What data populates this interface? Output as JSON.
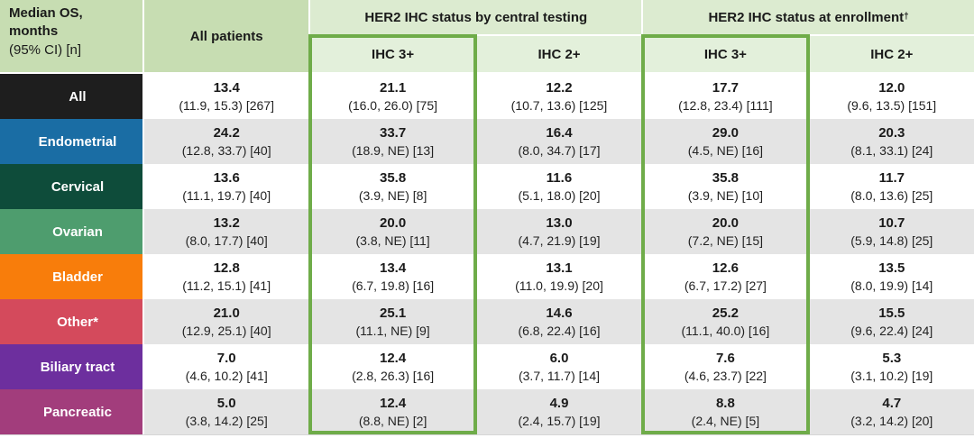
{
  "colors": {
    "header_left_green": "#C7DDB2",
    "banner_green": "#DCEBD0",
    "subheader_green": "#E3F0DB",
    "highlight_border_green": "#6FAC49",
    "alt_row_gray": "#E4E4E4",
    "text_dark": "#1A1A1A"
  },
  "chart_data": {
    "type": "table",
    "title": "Median OS, months (95% CI) [n]",
    "corner_header_lines": [
      "Median OS,",
      "months",
      "(95% CI) [n]"
    ],
    "group_headers": [
      {
        "text": "HER2 IHC status by central testing",
        "sup": ""
      },
      {
        "text": "HER2 IHC status at enrollment",
        "sup": "†"
      }
    ],
    "columns": [
      "All patients",
      "IHC 3+",
      "IHC 2+",
      "IHC 3+",
      "IHC 2+"
    ],
    "highlighted_columns": [
      "IHC 3+ by central testing",
      "IHC 3+ at enrollment"
    ],
    "rows": [
      {
        "label": "All",
        "color": "#1E1E1E",
        "cells": [
          {
            "m": "13.4",
            "ci": "(11.9, 15.3) [267]"
          },
          {
            "m": "21.1",
            "ci": "(16.0, 26.0) [75]"
          },
          {
            "m": "12.2",
            "ci": "(10.7, 13.6) [125]"
          },
          {
            "m": "17.7",
            "ci": "(12.8, 23.4) [111]"
          },
          {
            "m": "12.0",
            "ci": "(9.6, 13.5) [151]"
          }
        ]
      },
      {
        "label": "Endometrial",
        "color": "#1A6DA4",
        "cells": [
          {
            "m": "24.2",
            "ci": "(12.8, 33.7) [40]"
          },
          {
            "m": "33.7",
            "ci": "(18.9, NE) [13]"
          },
          {
            "m": "16.4",
            "ci": "(8.0, 34.7) [17]"
          },
          {
            "m": "29.0",
            "ci": "(4.5, NE) [16]"
          },
          {
            "m": "20.3",
            "ci": "(8.1, 33.1) [24]"
          }
        ]
      },
      {
        "label": "Cervical",
        "color": "#0E4C3A",
        "cells": [
          {
            "m": "13.6",
            "ci": "(11.1, 19.7) [40]"
          },
          {
            "m": "35.8",
            "ci": "(3.9, NE) [8]"
          },
          {
            "m": "11.6",
            "ci": "(5.1, 18.0) [20]"
          },
          {
            "m": "35.8",
            "ci": "(3.9, NE) [10]"
          },
          {
            "m": "11.7",
            "ci": "(8.0, 13.6) [25]"
          }
        ]
      },
      {
        "label": "Ovarian",
        "color": "#4E9D6E",
        "cells": [
          {
            "m": "13.2",
            "ci": "(8.0, 17.7) [40]"
          },
          {
            "m": "20.0",
            "ci": "(3.8, NE) [11]"
          },
          {
            "m": "13.0",
            "ci": "(4.7, 21.9) [19]"
          },
          {
            "m": "20.0",
            "ci": "(7.2, NE) [15]"
          },
          {
            "m": "10.7",
            "ci": "(5.9, 14.8) [25]"
          }
        ]
      },
      {
        "label": "Bladder",
        "color": "#F87D0B",
        "cells": [
          {
            "m": "12.8",
            "ci": "(11.2, 15.1) [41]"
          },
          {
            "m": "13.4",
            "ci": "(6.7, 19.8) [16]"
          },
          {
            "m": "13.1",
            "ci": "(11.0, 19.9) [20]"
          },
          {
            "m": "12.6",
            "ci": "(6.7, 17.2) [27]"
          },
          {
            "m": "13.5",
            "ci": "(8.0, 19.9) [14]"
          }
        ]
      },
      {
        "label": "Other*",
        "color": "#D44A5C",
        "cells": [
          {
            "m": "21.0",
            "ci": "(12.9, 25.1) [40]"
          },
          {
            "m": "25.1",
            "ci": "(11.1, NE) [9]"
          },
          {
            "m": "14.6",
            "ci": "(6.8, 22.4) [16]"
          },
          {
            "m": "25.2",
            "ci": "(11.1, 40.0) [16]"
          },
          {
            "m": "15.5",
            "ci": "(9.6, 22.4) [24]"
          }
        ]
      },
      {
        "label": "Biliary tract",
        "color": "#6D2F9E",
        "cells": [
          {
            "m": "7.0",
            "ci": "(4.6, 10.2) [41]"
          },
          {
            "m": "12.4",
            "ci": "(2.8, 26.3) [16]"
          },
          {
            "m": "6.0",
            "ci": "(3.7, 11.7) [14]"
          },
          {
            "m": "7.6",
            "ci": "(4.6, 23.7) [22]"
          },
          {
            "m": "5.3",
            "ci": "(3.1, 10.2) [19]"
          }
        ]
      },
      {
        "label": "Pancreatic",
        "color": "#A23D7C",
        "cells": [
          {
            "m": "5.0",
            "ci": "(3.8, 14.2) [25]"
          },
          {
            "m": "12.4",
            "ci": "(8.8, NE) [2]"
          },
          {
            "m": "4.9",
            "ci": "(2.4, 15.7) [19]"
          },
          {
            "m": "8.8",
            "ci": "(2.4, NE) [5]"
          },
          {
            "m": "4.7",
            "ci": "(3.2, 14.2) [20]"
          }
        ]
      }
    ]
  }
}
